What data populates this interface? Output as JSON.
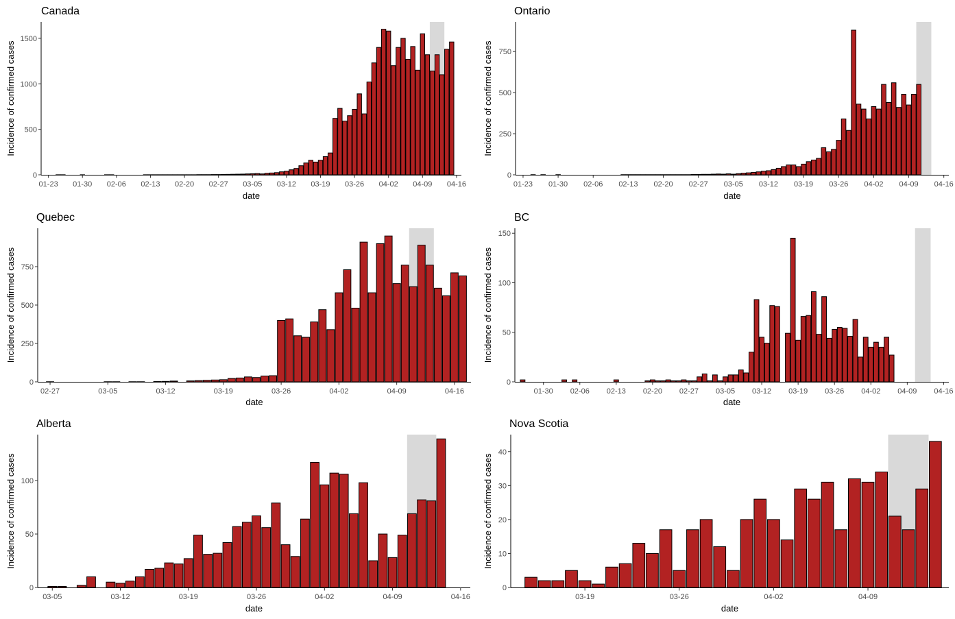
{
  "chart_data": [
    {
      "type": "bar",
      "title": "Canada",
      "xlabel": "date",
      "ylabel": "Incidence of confirmed cases",
      "x_start": "01-25",
      "x_ticks": [
        "01-23",
        "01-30",
        "02-06",
        "02-13",
        "02-20",
        "02-27",
        "03-05",
        "03-12",
        "03-19",
        "03-26",
        "04-02",
        "04-09",
        "04-16"
      ],
      "y_ticks": [
        0,
        500,
        1000,
        1500
      ],
      "ylim": [
        0,
        1680
      ],
      "shade": [
        "04-11",
        "04-13"
      ],
      "values": [
        1,
        1,
        0,
        0,
        0,
        1,
        0,
        0,
        0,
        0,
        1,
        1,
        0,
        0,
        0,
        0,
        0,
        0,
        1,
        1,
        1,
        1,
        1,
        1,
        1,
        1,
        1,
        1,
        1,
        2,
        2,
        2,
        3,
        3,
        4,
        5,
        6,
        7,
        8,
        10,
        12,
        14,
        10,
        17,
        20,
        24,
        33,
        40,
        55,
        70,
        100,
        130,
        160,
        140,
        160,
        200,
        240,
        620,
        730,
        590,
        650,
        720,
        890,
        670,
        1020,
        1230,
        1400,
        1600,
        1580,
        1200,
        1400,
        1500,
        1270,
        1410,
        1150,
        1550,
        1320,
        1140,
        1320,
        1100,
        1380,
        1460
      ],
      "bar_color": "#b22222",
      "shade_color": "#d9d9d9"
    },
    {
      "type": "bar",
      "title": "Ontario",
      "xlabel": "date",
      "ylabel": "Incidence of confirmed cases",
      "x_start": "01-25",
      "x_ticks": [
        "01-23",
        "01-30",
        "02-06",
        "02-13",
        "02-20",
        "02-27",
        "03-05",
        "03-12",
        "03-19",
        "03-26",
        "04-02",
        "04-09",
        "04-16"
      ],
      "y_ticks": [
        0,
        250,
        500,
        750
      ],
      "ylim": [
        0,
        930
      ],
      "shade": [
        "04-11",
        "04-13"
      ],
      "values": [
        1,
        0,
        1,
        0,
        0,
        1,
        0,
        0,
        0,
        0,
        0,
        0,
        0,
        0,
        0,
        0,
        0,
        0,
        1,
        1,
        1,
        1,
        1,
        1,
        1,
        1,
        1,
        1,
        1,
        1,
        1,
        1,
        2,
        2,
        3,
        3,
        4,
        5,
        4,
        6,
        4,
        7,
        10,
        12,
        15,
        18,
        22,
        25,
        32,
        40,
        50,
        60,
        60,
        50,
        65,
        80,
        90,
        100,
        165,
        140,
        155,
        210,
        340,
        270,
        880,
        430,
        400,
        340,
        415,
        400,
        550,
        440,
        560,
        410,
        490,
        425,
        490,
        550
      ],
      "bar_color": "#b22222",
      "shade_color": "#d9d9d9"
    },
    {
      "type": "bar",
      "title": "Quebec",
      "xlabel": "date",
      "ylabel": "Incidence of confirmed cases",
      "x_start": "02-27",
      "x_ticks": [
        "02-27",
        "03-05",
        "03-12",
        "03-19",
        "03-26",
        "04-02",
        "04-09",
        "04-16"
      ],
      "y_ticks": [
        0,
        250,
        500,
        750
      ],
      "ylim": [
        0,
        1000
      ],
      "shade": [
        "04-11",
        "04-13"
      ],
      "values": [
        1,
        0,
        0,
        0,
        0,
        0,
        0,
        1,
        1,
        0,
        1,
        1,
        0,
        2,
        3,
        5,
        0,
        6,
        8,
        10,
        12,
        14,
        22,
        25,
        32,
        28,
        38,
        40,
        400,
        410,
        300,
        290,
        390,
        470,
        340,
        580,
        730,
        480,
        910,
        580,
        900,
        950,
        640,
        760,
        620,
        890,
        760,
        610,
        560,
        710,
        690
      ],
      "bar_color": "#b22222",
      "shade_color": "#d9d9d9"
    },
    {
      "type": "bar",
      "title": "BC",
      "xlabel": "date",
      "ylabel": "Incidence of confirmed cases",
      "x_start": "01-26",
      "x_ticks": [
        "01-30",
        "02-06",
        "02-13",
        "02-20",
        "02-27",
        "03-05",
        "03-12",
        "03-19",
        "03-26",
        "04-02",
        "04-09",
        "04-16"
      ],
      "y_ticks": [
        0,
        50,
        100,
        150
      ],
      "ylim": [
        0,
        155
      ],
      "shade": [
        "04-11",
        "04-13"
      ],
      "values": [
        2,
        0,
        0,
        0,
        0,
        0,
        0,
        0,
        2,
        0,
        2,
        0,
        0,
        0,
        0,
        0,
        0,
        0,
        2,
        0,
        0,
        0,
        0,
        0,
        1,
        2,
        1,
        1,
        2,
        1,
        1,
        2,
        1,
        1,
        5,
        8,
        1,
        7,
        1,
        5,
        7,
        7,
        12,
        9,
        30,
        83,
        45,
        39,
        77,
        76,
        0,
        49,
        145,
        42,
        66,
        67,
        91,
        48,
        86,
        44,
        53,
        55,
        54,
        46,
        63,
        25,
        45,
        35,
        40,
        35,
        45,
        27
      ],
      "bar_color": "#b22222",
      "shade_color": "#d9d9d9"
    },
    {
      "type": "bar",
      "title": "Alberta",
      "xlabel": "date",
      "ylabel": "Incidence of confirmed cases",
      "x_start": "03-05",
      "x_ticks": [
        "03-05",
        "03-12",
        "03-19",
        "03-26",
        "04-02",
        "04-09",
        "04-16"
      ],
      "y_ticks": [
        0,
        50,
        100
      ],
      "ylim": [
        0,
        143
      ],
      "shade": [
        "04-11",
        "04-13"
      ],
      "values": [
        1,
        1,
        0,
        2,
        10,
        0,
        5,
        4,
        6,
        10,
        17,
        18,
        23,
        22,
        27,
        49,
        31,
        32,
        42,
        57,
        61,
        67,
        56,
        79,
        40,
        29,
        64,
        117,
        96,
        107,
        106,
        69,
        98,
        25,
        50,
        28,
        49,
        69,
        82,
        81,
        139
      ],
      "bar_color": "#b22222",
      "shade_color": "#d9d9d9"
    },
    {
      "type": "bar",
      "title": "Nova Scotia",
      "xlabel": "date",
      "ylabel": "Incidence of confirmed cases",
      "x_start": "03-15",
      "x_ticks": [
        "03-19",
        "03-26",
        "04-02",
        "04-09"
      ],
      "y_ticks": [
        0,
        10,
        20,
        30,
        40
      ],
      "ylim": [
        0,
        45
      ],
      "shade": [
        "04-11",
        "04-13"
      ],
      "values": [
        3,
        2,
        2,
        5,
        2,
        1,
        6,
        7,
        13,
        10,
        17,
        5,
        17,
        20,
        12,
        5,
        20,
        26,
        20,
        14,
        29,
        26,
        31,
        17,
        32,
        31,
        34,
        21,
        17,
        29,
        43
      ],
      "bar_color": "#b22222",
      "shade_color": "#d9d9d9"
    }
  ]
}
